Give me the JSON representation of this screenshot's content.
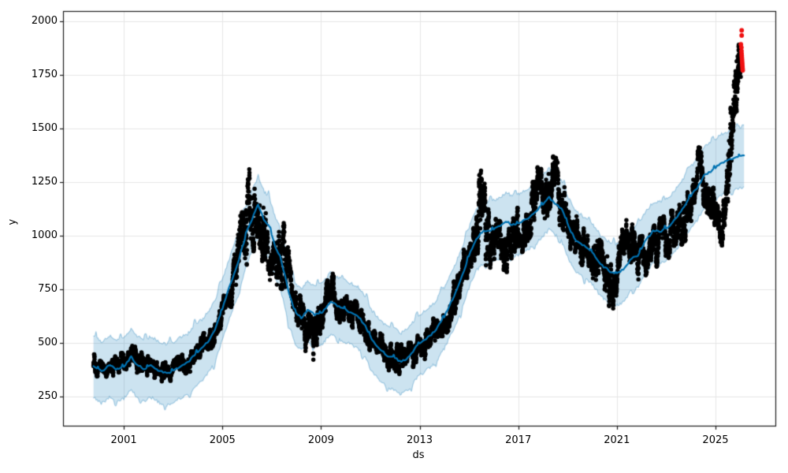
{
  "figure": {
    "background": "#ffffff"
  },
  "axes": {
    "xlabel": "ds",
    "ylabel": "y",
    "x_ticks": {
      "values": [
        2001,
        2005,
        2009,
        2013,
        2017,
        2021,
        2025
      ],
      "labels": [
        "2001",
        "2005",
        "2009",
        "2013",
        "2017",
        "2021",
        "2025"
      ]
    },
    "y_ticks": {
      "values": [
        250,
        500,
        750,
        1000,
        1250,
        1500,
        1750,
        2000
      ],
      "labels": [
        "250",
        "500",
        "750",
        "1000",
        "1250",
        "1500",
        "1750",
        "2000"
      ]
    },
    "x_domain": [
      1998.536,
      2027.43
    ],
    "y_domain": [
      114,
      2048
    ],
    "grid": true,
    "grid_color": "#e6e6e6",
    "spine_color": "#1c1c1c",
    "tick_color": "#1c1c1c",
    "text_color": "#000000"
  },
  "chart_data": {
    "type": "scatter",
    "title": "",
    "xlabel": "ds",
    "ylabel": "y",
    "xlim": [
      1998.536,
      2027.43
    ],
    "ylim": [
      114,
      2048
    ],
    "grid": true,
    "legend": "none",
    "x_range_of_data_years": [
      1999.77,
      2026.16
    ],
    "series": [
      {
        "name": "observations",
        "type": "scatter",
        "color": "#000000",
        "marker_radius": 2.7,
        "points_per_year": 300,
        "seed": 1913,
        "profile_keypoints_comment": "[year, center value, max deviation] envelope of the dense black daily scatter, read from plot",
        "profile_keypoints": [
          [
            1999.77,
            390,
            60
          ],
          [
            2000.3,
            375,
            55
          ],
          [
            2000.9,
            395,
            60
          ],
          [
            2001.35,
            445,
            65
          ],
          [
            2001.8,
            390,
            55
          ],
          [
            2002.2,
            395,
            55
          ],
          [
            2002.55,
            365,
            50
          ],
          [
            2003.0,
            375,
            50
          ],
          [
            2003.5,
            400,
            55
          ],
          [
            2004.0,
            458,
            60
          ],
          [
            2004.5,
            515,
            60
          ],
          [
            2005.0,
            650,
            70
          ],
          [
            2005.45,
            780,
            90
          ],
          [
            2005.85,
            1050,
            260
          ],
          [
            2006.3,
            1125,
            185
          ],
          [
            2006.7,
            1000,
            160
          ],
          [
            2007.0,
            840,
            140
          ],
          [
            2007.35,
            960,
            210
          ],
          [
            2007.6,
            900,
            150
          ],
          [
            2007.95,
            690,
            110
          ],
          [
            2008.3,
            575,
            95
          ],
          [
            2008.7,
            490,
            120
          ],
          [
            2009.05,
            630,
            85
          ],
          [
            2009.4,
            755,
            90
          ],
          [
            2009.8,
            655,
            80
          ],
          [
            2010.2,
            638,
            80
          ],
          [
            2010.6,
            585,
            90
          ],
          [
            2011.0,
            535,
            80
          ],
          [
            2011.45,
            465,
            80
          ],
          [
            2011.9,
            425,
            90
          ],
          [
            2012.3,
            420,
            75
          ],
          [
            2012.7,
            458,
            75
          ],
          [
            2013.2,
            498,
            75
          ],
          [
            2013.7,
            556,
            80
          ],
          [
            2014.2,
            645,
            90
          ],
          [
            2014.7,
            795,
            105
          ],
          [
            2015.1,
            945,
            115
          ],
          [
            2015.45,
            1150,
            250
          ],
          [
            2015.75,
            950,
            200
          ],
          [
            2016.1,
            1020,
            120
          ],
          [
            2016.4,
            880,
            125
          ],
          [
            2016.8,
            1005,
            110
          ],
          [
            2017.15,
            1035,
            115
          ],
          [
            2017.5,
            1145,
            145
          ],
          [
            2017.85,
            1270,
            130
          ],
          [
            2018.15,
            1200,
            150
          ],
          [
            2018.45,
            1285,
            120
          ],
          [
            2018.75,
            1145,
            130
          ],
          [
            2019.05,
            1045,
            120
          ],
          [
            2019.4,
            1000,
            105
          ],
          [
            2019.8,
            928,
            105
          ],
          [
            2020.2,
            898,
            115
          ],
          [
            2020.55,
            790,
            145
          ],
          [
            2020.9,
            770,
            120
          ],
          [
            2021.2,
            945,
            130
          ],
          [
            2021.55,
            995,
            115
          ],
          [
            2021.9,
            885,
            110
          ],
          [
            2022.3,
            905,
            105
          ],
          [
            2022.7,
            975,
            105
          ],
          [
            2023.1,
            1000,
            105
          ],
          [
            2023.5,
            1048,
            105
          ],
          [
            2023.9,
            1098,
            110
          ],
          [
            2024.4,
            1315,
            135
          ],
          [
            2024.7,
            1135,
            125
          ],
          [
            2025.0,
            1090,
            120
          ],
          [
            2025.2,
            1010,
            100
          ],
          [
            2025.4,
            1160,
            120
          ],
          [
            2025.6,
            1420,
            160
          ],
          [
            2025.8,
            1690,
            170
          ],
          [
            2025.95,
            1790,
            110
          ],
          [
            2026.03,
            1825,
            90
          ]
        ]
      },
      {
        "name": "forecast_yhat",
        "type": "line",
        "color": "#0072B2",
        "width": 2.2,
        "keypoints": [
          [
            1999.77,
            395
          ],
          [
            2000.1,
            368
          ],
          [
            2000.45,
            398
          ],
          [
            2000.7,
            375
          ],
          [
            2001.0,
            388
          ],
          [
            2001.3,
            435
          ],
          [
            2001.5,
            402
          ],
          [
            2001.8,
            378
          ],
          [
            2002.1,
            396
          ],
          [
            2002.45,
            370
          ],
          [
            2002.75,
            358
          ],
          [
            2003.05,
            372
          ],
          [
            2003.35,
            396
          ],
          [
            2003.6,
            408
          ],
          [
            2003.95,
            455
          ],
          [
            2004.2,
            478
          ],
          [
            2004.45,
            512
          ],
          [
            2004.7,
            560
          ],
          [
            2005.0,
            662
          ],
          [
            2005.3,
            766
          ],
          [
            2005.65,
            884
          ],
          [
            2006.0,
            1022
          ],
          [
            2006.45,
            1145
          ],
          [
            2006.7,
            1072
          ],
          [
            2006.9,
            1040
          ],
          [
            2007.15,
            948
          ],
          [
            2007.35,
            900
          ],
          [
            2007.7,
            736
          ],
          [
            2007.95,
            645
          ],
          [
            2008.2,
            616
          ],
          [
            2008.45,
            652
          ],
          [
            2008.75,
            632
          ],
          [
            2009.05,
            642
          ],
          [
            2009.4,
            694
          ],
          [
            2009.65,
            672
          ],
          [
            2009.95,
            656
          ],
          [
            2010.25,
            640
          ],
          [
            2010.5,
            626
          ],
          [
            2010.8,
            580
          ],
          [
            2011.05,
            518
          ],
          [
            2011.35,
            477
          ],
          [
            2011.7,
            440
          ],
          [
            2012.0,
            430
          ],
          [
            2012.25,
            410
          ],
          [
            2012.55,
            432
          ],
          [
            2012.9,
            488
          ],
          [
            2013.25,
            520
          ],
          [
            2013.6,
            552
          ],
          [
            2014.0,
            622
          ],
          [
            2014.5,
            745
          ],
          [
            2014.8,
            835
          ],
          [
            2015.05,
            920
          ],
          [
            2015.3,
            988
          ],
          [
            2015.55,
            1018
          ],
          [
            2015.9,
            1026
          ],
          [
            2016.2,
            1040
          ],
          [
            2016.5,
            1068
          ],
          [
            2016.75,
            1052
          ],
          [
            2017.05,
            1058
          ],
          [
            2017.4,
            1082
          ],
          [
            2017.75,
            1118
          ],
          [
            2018.0,
            1148
          ],
          [
            2018.25,
            1178
          ],
          [
            2018.5,
            1152
          ],
          [
            2018.75,
            1128
          ],
          [
            2019.05,
            1038
          ],
          [
            2019.35,
            978
          ],
          [
            2019.7,
            950
          ],
          [
            2020.0,
            922
          ],
          [
            2020.35,
            866
          ],
          [
            2020.7,
            836
          ],
          [
            2020.95,
            820
          ],
          [
            2021.25,
            842
          ],
          [
            2021.6,
            895
          ],
          [
            2021.85,
            910
          ],
          [
            2022.1,
            965
          ],
          [
            2022.45,
            1020
          ],
          [
            2022.8,
            1022
          ],
          [
            2023.15,
            1046
          ],
          [
            2023.45,
            1090
          ],
          [
            2023.75,
            1142
          ],
          [
            2023.95,
            1178
          ],
          [
            2024.25,
            1222
          ],
          [
            2024.55,
            1282
          ],
          [
            2024.85,
            1302
          ],
          [
            2025.2,
            1336
          ],
          [
            2025.6,
            1356
          ],
          [
            2025.95,
            1370
          ],
          [
            2026.16,
            1376
          ]
        ]
      },
      {
        "name": "uncertainty_band",
        "type": "band",
        "fill_color": "rgba(0,114,178,0.20)",
        "edge_color": "rgba(0,114,178,0.30)",
        "offset_above": 128,
        "offset_below": 142,
        "edge_jag_amplitude": 15,
        "annual_spike_amplitude": 24,
        "noise_seed_upper": 77,
        "noise_seed_lower": 101
      },
      {
        "name": "anomalies",
        "type": "scatter",
        "color": "#f01212",
        "marker_radius": 2.9,
        "points": [
          [
            2026.063,
            1958
          ],
          [
            2026.063,
            1934
          ],
          [
            2026.03,
            1893
          ],
          [
            2026.05,
            1878
          ],
          [
            2026.055,
            1862
          ],
          [
            2026.06,
            1850
          ],
          [
            2026.065,
            1840
          ],
          [
            2026.07,
            1831
          ],
          [
            2026.075,
            1822
          ],
          [
            2026.08,
            1813
          ],
          [
            2026.085,
            1804
          ],
          [
            2026.09,
            1795
          ],
          [
            2026.095,
            1787
          ],
          [
            2026.1,
            1779
          ],
          [
            2026.105,
            1771
          ]
        ]
      }
    ],
    "line_wiggle": {
      "seed": 55,
      "amplitude": 9,
      "annual_spike_amplitude": 12
    }
  }
}
